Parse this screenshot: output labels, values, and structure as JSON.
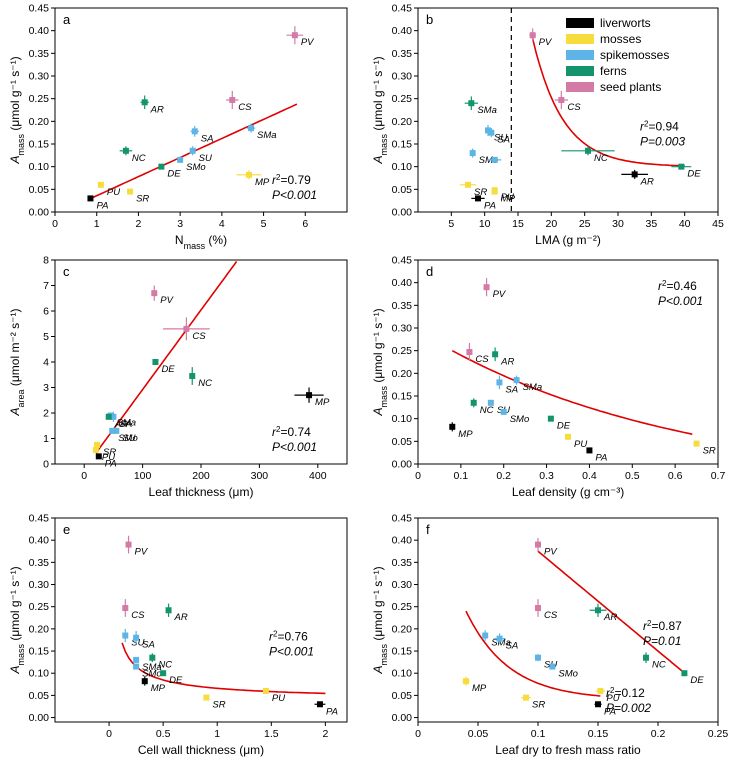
{
  "colors": {
    "liverworts": "#000000",
    "mosses": "#f6dc3c",
    "spikemosses": "#5cb5e6",
    "ferns": "#14946c",
    "seed_plants": "#d47aa6",
    "fit": "#e00000"
  },
  "legend": [
    {
      "key": "liverworts",
      "label": "liverworts"
    },
    {
      "key": "mosses",
      "label": "mosses"
    },
    {
      "key": "spikemosses",
      "label": "spikemosses"
    },
    {
      "key": "ferns",
      "label": "ferns"
    },
    {
      "key": "seed_plants",
      "label": "seed plants"
    }
  ],
  "chart_data": [
    {
      "id": "a",
      "type": "scatter",
      "panel_label": "a",
      "xlabel": "N",
      "xlabel_sub": "mass",
      "xlabel_suffix": " (%)",
      "ylabel": "A",
      "ylabel_sub": "mass",
      "ylabel_suffix": " (μmol g⁻¹ s⁻¹)",
      "xlim": [
        0,
        7
      ],
      "ylim": [
        0,
        0.45
      ],
      "xticks": [
        0,
        1,
        2,
        3,
        4,
        5,
        6
      ],
      "yticks": [
        0,
        0.05,
        0.1,
        0.15,
        0.2,
        0.25,
        0.3,
        0.35,
        0.4,
        0.45
      ],
      "ytick_dec": 2,
      "points": [
        {
          "label": "PA",
          "group": "liverworts",
          "x": 0.85,
          "y": 0.03
        },
        {
          "label": "PU",
          "group": "mosses",
          "x": 1.1,
          "y": 0.06
        },
        {
          "label": "SR",
          "group": "mosses",
          "x": 1.8,
          "y": 0.045
        },
        {
          "label": "MP",
          "group": "mosses",
          "x": 4.65,
          "y": 0.082,
          "xerr": 0.3,
          "yerr": 0.01
        },
        {
          "label": "SMo",
          "group": "spikemosses",
          "x": 3.0,
          "y": 0.115
        },
        {
          "label": "SU",
          "group": "spikemosses",
          "x": 3.3,
          "y": 0.135,
          "yerr": 0.01
        },
        {
          "label": "SA",
          "group": "spikemosses",
          "x": 3.35,
          "y": 0.178,
          "yerr": 0.012,
          "xerr": 0.1
        },
        {
          "label": "SMa",
          "group": "spikemosses",
          "x": 4.7,
          "y": 0.185,
          "yerr": 0.01,
          "xerr": 0.1
        },
        {
          "label": "DE",
          "group": "ferns",
          "x": 2.55,
          "y": 0.1
        },
        {
          "label": "NC",
          "group": "ferns",
          "x": 1.7,
          "y": 0.135,
          "yerr": 0.01,
          "xerr": 0.15
        },
        {
          "label": "AR",
          "group": "ferns",
          "x": 2.15,
          "y": 0.242,
          "yerr": 0.015,
          "xerr": 0.1
        },
        {
          "label": "CS",
          "group": "seed_plants",
          "x": 4.25,
          "y": 0.247,
          "yerr": 0.02,
          "xerr": 0.15
        },
        {
          "label": "PV",
          "group": "seed_plants",
          "x": 5.75,
          "y": 0.39,
          "yerr": 0.02,
          "xerr": 0.2
        }
      ],
      "fits": [
        {
          "kind": "linear",
          "x": [
            0.85,
            5.8
          ],
          "a": -0.0062,
          "b": 0.0421
        }
      ],
      "annotations": [
        {
          "r2": "0.79",
          "p": "P<0.001",
          "pos": "br"
        }
      ]
    },
    {
      "id": "b",
      "type": "scatter",
      "panel_label": "b",
      "xlabel": "LMA",
      "xlabel_sub": "",
      "xlabel_suffix": " (g m⁻²)",
      "ylabel": "A",
      "ylabel_sub": "mass",
      "ylabel_suffix": " (μmol g⁻¹ s⁻¹)",
      "xlim": [
        0,
        45
      ],
      "ylim": [
        0,
        0.45
      ],
      "xticks": [
        5,
        10,
        15,
        20,
        25,
        30,
        35,
        40,
        45
      ],
      "yticks": [
        0,
        0.05,
        0.1,
        0.15,
        0.2,
        0.25,
        0.3,
        0.35,
        0.4,
        0.45
      ],
      "ytick_dec": 2,
      "dashed_x": 14,
      "points": [
        {
          "label": "PA",
          "group": "liverworts",
          "x": 9,
          "y": 0.03,
          "xerr": 1
        },
        {
          "label": "AR_liv",
          "display": "AR",
          "group": "liverworts",
          "x": 32.5,
          "y": 0.083,
          "xerr": 2,
          "yerr": 0.01
        },
        {
          "label": "SR",
          "group": "mosses",
          "x": 7.5,
          "y": 0.06,
          "xerr": 1.2
        },
        {
          "label": "MP",
          "group": "mosses",
          "x": 11.5,
          "y": 0.045
        },
        {
          "label": "PU",
          "group": "mosses",
          "x": 11.5,
          "y": 0.048
        },
        {
          "label": "SMo",
          "group": "spikemosses",
          "x": 8.2,
          "y": 0.13,
          "yerr": 0.01
        },
        {
          "label": "SU",
          "group": "spikemosses",
          "x": 10.5,
          "y": 0.18,
          "yerr": 0.012
        },
        {
          "label": "SA",
          "group": "spikemosses",
          "x": 11,
          "y": 0.175,
          "yerr": 0.01
        },
        {
          "label": "PU_s",
          "display": "",
          "group": "spikemosses",
          "x": 11.5,
          "y": 0.115,
          "xerr": 1
        },
        {
          "label": "SMa",
          "group": "ferns",
          "x": 8,
          "y": 0.24,
          "yerr": 0.015,
          "xerr": 1
        },
        {
          "label": "NC",
          "group": "ferns",
          "x": 25.5,
          "y": 0.135,
          "xerr": 4,
          "yerr": 0.01
        },
        {
          "label": "DE",
          "group": "ferns",
          "x": 39.5,
          "y": 0.1,
          "xerr": 1.5
        },
        {
          "label": "CS",
          "group": "seed_plants",
          "x": 21.5,
          "y": 0.247,
          "yerr": 0.02,
          "xerr": 1
        },
        {
          "label": "PV",
          "group": "seed_plants",
          "x": 17.2,
          "y": 0.39,
          "yerr": 0.015,
          "xerr": 0.5
        }
      ],
      "fits": [
        {
          "kind": "exp",
          "x": [
            17,
            40
          ],
          "a": 0.1,
          "b": 0.295,
          "c": 0.22
        }
      ],
      "annotations": [
        {
          "r2": "0.94",
          "p": "P=0.003",
          "pos": "mr"
        }
      ]
    },
    {
      "id": "c",
      "type": "scatter",
      "panel_label": "c",
      "xlabel": "Leaf thickness (μm)",
      "xlabel_sub": "",
      "xlabel_suffix": "",
      "ylabel": "A",
      "ylabel_sub": "area",
      "ylabel_suffix": " (μmol m⁻² s⁻¹)",
      "xlim": [
        -50,
        450
      ],
      "ylim": [
        0,
        8
      ],
      "xticks": [
        0,
        100,
        200,
        300,
        400
      ],
      "yticks": [
        0,
        1,
        2,
        3,
        4,
        5,
        6,
        7,
        8
      ],
      "ytick_dec": 0,
      "points": [
        {
          "label": "PA",
          "group": "liverworts",
          "x": 25,
          "y": 0.3
        },
        {
          "label": "MP",
          "group": "liverworts",
          "x": 385,
          "y": 2.7,
          "xerr": 25,
          "yerr": 0.3
        },
        {
          "label": "PU",
          "group": "mosses",
          "x": 20,
          "y": 0.55
        },
        {
          "label": "SR",
          "group": "mosses",
          "x": 22,
          "y": 0.75
        },
        {
          "label": "SU",
          "group": "spikemosses",
          "x": 55,
          "y": 1.3
        },
        {
          "label": "SMo",
          "group": "spikemosses",
          "x": 48,
          "y": 1.3
        },
        {
          "label": "SA",
          "group": "spikemosses",
          "x": 50,
          "y": 1.85,
          "yerr": 0.2
        },
        {
          "label": "SMa",
          "group": "spikemosses",
          "x": 45,
          "y": 1.9
        },
        {
          "label": "AR",
          "group": "ferns",
          "x": 42,
          "y": 1.85
        },
        {
          "label": "DE",
          "group": "ferns",
          "x": 122,
          "y": 4
        },
        {
          "label": "NC",
          "group": "ferns",
          "x": 185,
          "y": 3.45,
          "yerr": 0.35
        },
        {
          "label": "CS",
          "group": "seed_plants",
          "x": 175,
          "y": 5.3,
          "xerr": 40,
          "yerr": 0.45
        },
        {
          "label": "PV",
          "group": "seed_plants",
          "x": 120,
          "y": 6.7,
          "yerr": 0.3
        }
      ],
      "fits": [
        {
          "kind": "linear",
          "x": [
            20,
            265
          ],
          "a": -0.2,
          "b": 0.0312
        }
      ],
      "annotations": [
        {
          "r2": "0.74",
          "p": "P<0.001",
          "pos": "br"
        }
      ]
    },
    {
      "id": "d",
      "type": "scatter",
      "panel_label": "d",
      "xlabel": "Leaf density (g cm⁻³)",
      "xlabel_sub": "",
      "xlabel_suffix": "",
      "ylabel": "A",
      "ylabel_sub": "mass",
      "ylabel_suffix": " (μmol g⁻¹ s⁻¹)",
      "xlim": [
        0,
        0.7
      ],
      "ylim": [
        0,
        0.45
      ],
      "xticks": [
        0,
        0.1,
        0.2,
        0.3,
        0.4,
        0.5,
        0.6,
        0.7
      ],
      "yticks": [
        0,
        0.05,
        0.1,
        0.15,
        0.2,
        0.25,
        0.3,
        0.35,
        0.4,
        0.45
      ],
      "ytick_dec": 2,
      "points": [
        {
          "label": "MP",
          "group": "liverworts",
          "x": 0.08,
          "y": 0.082,
          "yerr": 0.01
        },
        {
          "label": "PA",
          "group": "liverworts",
          "x": 0.4,
          "y": 0.03
        },
        {
          "label": "PU",
          "group": "mosses",
          "x": 0.35,
          "y": 0.06
        },
        {
          "label": "SR",
          "group": "mosses",
          "x": 0.65,
          "y": 0.045
        },
        {
          "label": "SA",
          "group": "spikemosses",
          "x": 0.19,
          "y": 0.18,
          "yerr": 0.015
        },
        {
          "label": "SMa",
          "group": "spikemosses",
          "x": 0.23,
          "y": 0.185,
          "yerr": 0.01
        },
        {
          "label": "SU",
          "group": "spikemosses",
          "x": 0.17,
          "y": 0.135
        },
        {
          "label": "SMo",
          "group": "spikemosses",
          "x": 0.2,
          "y": 0.115
        },
        {
          "label": "NC",
          "group": "ferns",
          "x": 0.13,
          "y": 0.135,
          "yerr": 0.01
        },
        {
          "label": "AR",
          "group": "ferns",
          "x": 0.18,
          "y": 0.242,
          "yerr": 0.015
        },
        {
          "label": "DE",
          "group": "ferns",
          "x": 0.31,
          "y": 0.1
        },
        {
          "label": "CS",
          "group": "seed_plants",
          "x": 0.12,
          "y": 0.247,
          "yerr": 0.02
        },
        {
          "label": "PV",
          "group": "seed_plants",
          "x": 0.16,
          "y": 0.39,
          "yerr": 0.02
        }
      ],
      "fits": [
        {
          "kind": "exp",
          "x": [
            0.08,
            0.64
          ],
          "a": -0.05,
          "b": 0.3,
          "c": 1.7
        }
      ],
      "annotations": [
        {
          "r2": "0.46",
          "p": "P<0.001",
          "pos": "tr"
        }
      ]
    },
    {
      "id": "e",
      "type": "scatter",
      "panel_label": "e",
      "xlabel": "Cell wall thickness (μm)",
      "xlabel_sub": "",
      "xlabel_suffix": "",
      "ylabel": "A",
      "ylabel_sub": "mass",
      "ylabel_suffix": " (μmol g⁻¹ s⁻¹)",
      "xlim": [
        -0.5,
        2.2
      ],
      "ylim": [
        -0.01,
        0.45
      ],
      "xticks": [
        0,
        0.5,
        1,
        1.5,
        2
      ],
      "yticks": [
        0,
        0.05,
        0.1,
        0.15,
        0.2,
        0.25,
        0.3,
        0.35,
        0.4,
        0.45
      ],
      "ytick_dec": 2,
      "points": [
        {
          "label": "MP",
          "group": "liverworts",
          "x": 0.33,
          "y": 0.082,
          "yerr": 0.01
        },
        {
          "label": "PA",
          "group": "liverworts",
          "x": 1.95,
          "y": 0.03,
          "xerr": 0.05
        },
        {
          "label": "SR",
          "group": "mosses",
          "x": 0.9,
          "y": 0.045
        },
        {
          "label": "PU",
          "group": "mosses",
          "x": 1.45,
          "y": 0.06
        },
        {
          "label": "SU",
          "group": "spikemosses",
          "x": 0.15,
          "y": 0.185,
          "yerr": 0.015
        },
        {
          "label": "SA",
          "group": "spikemosses",
          "x": 0.25,
          "y": 0.18,
          "yerr": 0.015
        },
        {
          "label": "SMa",
          "group": "spikemosses",
          "x": 0.25,
          "y": 0.13
        },
        {
          "label": "SMo",
          "group": "spikemosses",
          "x": 0.25,
          "y": 0.115
        },
        {
          "label": "NC",
          "group": "ferns",
          "x": 0.4,
          "y": 0.135,
          "yerr": 0.01
        },
        {
          "label": "AR",
          "group": "ferns",
          "x": 0.55,
          "y": 0.242,
          "yerr": 0.015
        },
        {
          "label": "DE",
          "group": "ferns",
          "x": 0.5,
          "y": 0.1
        },
        {
          "label": "CS",
          "group": "seed_plants",
          "x": 0.15,
          "y": 0.247,
          "yerr": 0.02
        },
        {
          "label": "PV",
          "group": "seed_plants",
          "x": 0.18,
          "y": 0.39,
          "yerr": 0.02
        }
      ],
      "fits": [
        {
          "kind": "power",
          "x": [
            0.12,
            2.0
          ],
          "a": 0.036,
          "b": 0.03,
          "c": 0.7
        }
      ],
      "annotations": [
        {
          "r2": "0.76",
          "p": "P<0.001",
          "pos": "mr"
        }
      ]
    },
    {
      "id": "f",
      "type": "scatter",
      "panel_label": "f",
      "xlabel": "Leaf dry to fresh mass ratio",
      "xlabel_sub": "",
      "xlabel_suffix": "",
      "ylabel": "A",
      "ylabel_sub": "mass",
      "ylabel_suffix": " (μmol g⁻¹ s⁻¹)",
      "xlim": [
        0,
        0.25
      ],
      "ylim": [
        -0.01,
        0.45
      ],
      "xticks": [
        0,
        0.05,
        0.1,
        0.15,
        0.2,
        0.25
      ],
      "yticks": [
        0,
        0.05,
        0.1,
        0.15,
        0.2,
        0.25,
        0.3,
        0.35,
        0.4,
        0.45
      ],
      "ytick_dec": 2,
      "points": [
        {
          "label": "MP",
          "group": "mosses",
          "x": 0.04,
          "y": 0.082,
          "xerr": 0.003,
          "yerr": 0.01
        },
        {
          "label": "PA",
          "group": "liverworts",
          "x": 0.15,
          "y": 0.03,
          "xerr": 0.003
        },
        {
          "label": "SR",
          "group": "mosses",
          "x": 0.09,
          "y": 0.045,
          "xerr": 0.004
        },
        {
          "label": "PU",
          "group": "mosses",
          "x": 0.152,
          "y": 0.06,
          "xerr": 0.004
        },
        {
          "label": "SMa",
          "group": "spikemosses",
          "x": 0.056,
          "y": 0.185,
          "yerr": 0.012
        },
        {
          "label": "SA",
          "group": "spikemosses",
          "x": 0.068,
          "y": 0.178,
          "yerr": 0.012,
          "xerr": 0.005
        },
        {
          "label": "SU",
          "group": "spikemosses",
          "x": 0.1,
          "y": 0.135,
          "yerr": 0.008
        },
        {
          "label": "SMo",
          "group": "spikemosses",
          "x": 0.112,
          "y": 0.115
        },
        {
          "label": "AR",
          "group": "ferns",
          "x": 0.15,
          "y": 0.242,
          "yerr": 0.015,
          "xerr": 0.007
        },
        {
          "label": "NC",
          "group": "ferns",
          "x": 0.19,
          "y": 0.135,
          "yerr": 0.012
        },
        {
          "label": "DE",
          "group": "ferns",
          "x": 0.222,
          "y": 0.1
        },
        {
          "label": "CS",
          "group": "seed_plants",
          "x": 0.1,
          "y": 0.247,
          "yerr": 0.02
        },
        {
          "label": "PV",
          "group": "seed_plants",
          "x": 0.1,
          "y": 0.39,
          "yerr": 0.015
        }
      ],
      "fits": [
        {
          "kind": "linear",
          "x": [
            0.1,
            0.222
          ],
          "a": 0.6,
          "b": -2.25
        },
        {
          "kind": "exp",
          "x": [
            0.04,
            0.152
          ],
          "a": 0.04,
          "b": 0.2,
          "c": 28
        }
      ],
      "annotations": [
        {
          "r2": "0.87",
          "p": "P=0.01",
          "pos": "f1"
        },
        {
          "r2": "0.12",
          "p": "P=0.002",
          "pos": "f2"
        }
      ]
    }
  ]
}
